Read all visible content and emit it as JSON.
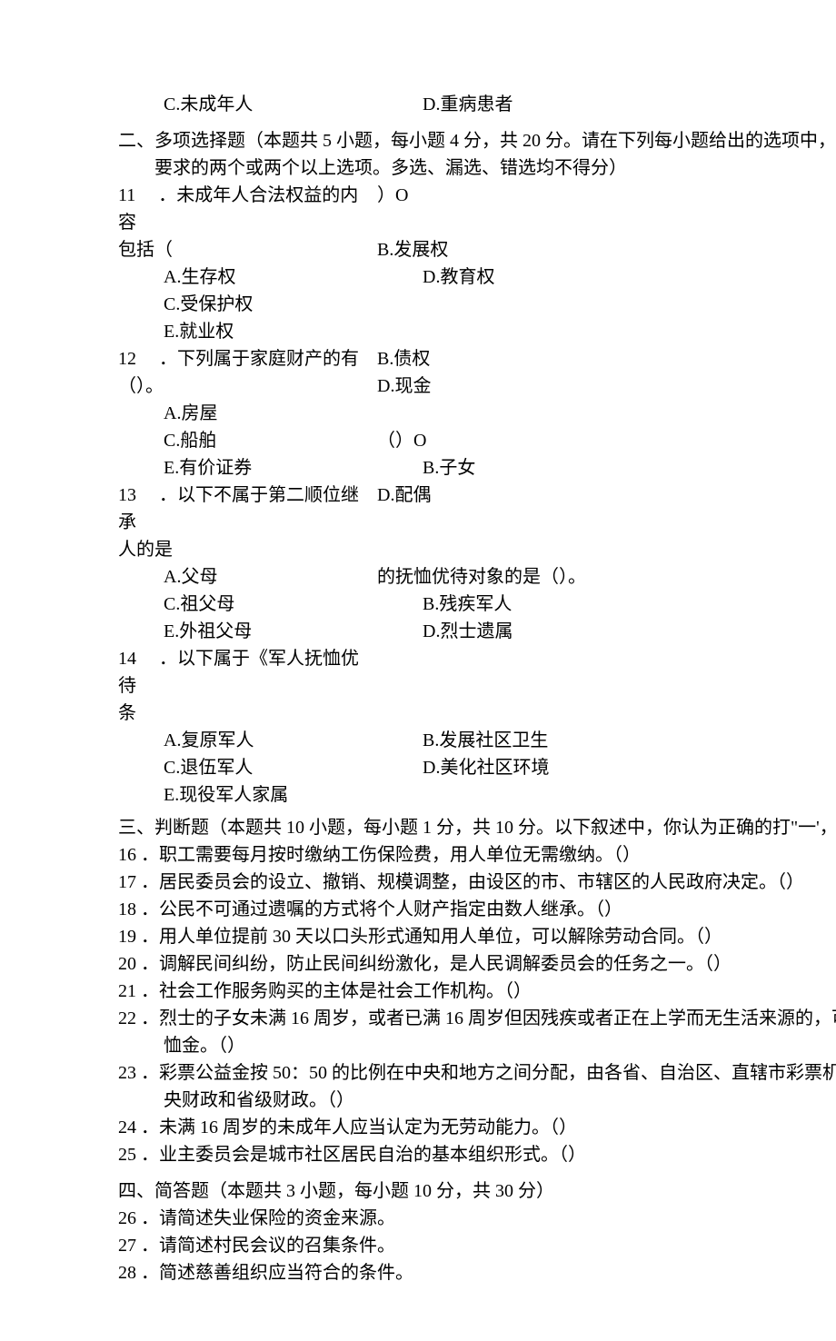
{
  "colors": {
    "background": "#ffffff",
    "text": "#000000"
  },
  "typography": {
    "font_family": "SimSun",
    "base_fontsize_pt": 15,
    "line_height": 1.5
  },
  "q10": {
    "optC": "C.未成年人",
    "optD": "D.重病患者"
  },
  "section2": {
    "head": "二、多项选择题（本题共 5 小题，每小题 4 分，共 20 分。请在下列每小题给出的选项中，选出符合题目要求的两个或两个以上选项。多选、漏选、错选均不得分）"
  },
  "q11": {
    "num": "11",
    "stem": "．未成年人合法权益的内容包括（",
    "tail": "）O",
    "optA": "A.生存权",
    "optB": "B.发展权",
    "optC": "C.受保护权",
    "optD": "D.教育权",
    "optE": "E.就业权"
  },
  "q12": {
    "num": "12",
    "stem": "．下列属于家庭财产的有（）。",
    "optA": "A.房屋",
    "optB": "B.债权",
    "optC": "C.船舶",
    "optD": "D.现金",
    "optE": "E.有价证券"
  },
  "q13": {
    "num": "13",
    "stem": "．以下不属于第二顺位继承人的是",
    "tail": "（）O",
    "optA": "A.父母",
    "optB": "B.子女",
    "optC": "C.祖父母",
    "optD": "D.配偶",
    "optE": "E.外祖父母"
  },
  "q14": {
    "num": "14",
    "stem": "．以下属于《军人抚恤优待条",
    "stem2": "的抚恤优待对象的是（）。",
    "optA": "A.复原军人",
    "optB": "B.残疾军人",
    "optC": "C.退伍军人",
    "optD": "D.烈士遗属",
    "optE": "E.现役军人家属"
  },
  "q15_extra": {
    "optB": "B.发展社区卫生",
    "optD": "D.美化社区环境"
  },
  "section3": {
    "head": "三、判断题（本题共 10 小题，每小题 1 分，共 10 分。以下叙述中，你认为正确的打\"一'，错误的打\"X\"）"
  },
  "q16": {
    "num": "16",
    "text": "．职工需要每月按时缴纳工伤保险费，用人单位无需缴纳。（）"
  },
  "q17": {
    "num": "17",
    "text": "．居民委员会的设立、撤销、规模调整，由设区的市、市辖区的人民政府决定。（）"
  },
  "q18": {
    "num": "18",
    "text": "．公民不可通过遗嘱的方式将个人财产指定由数人继承。（）"
  },
  "q19": {
    "num": "19",
    "text": "．用人单位提前 30 天以口头形式通知用人单位，可以解除劳动合同。（）"
  },
  "q20": {
    "num": "20",
    "text": "．调解民间纠纷，防止民间纠纷激化，是人民调解委员会的任务之一。（）"
  },
  "q21": {
    "num": "21",
    "text": "．社会工作服务购买的主体是社会工作机构。（）"
  },
  "q22": {
    "num": "22",
    "text": "．烈士的子女未满 16 周岁，或者已满 16 周岁但因残疾或者正在上学而无生活来源的，可享受定期抚恤金。（）"
  },
  "q23": {
    "num": "23",
    "text": "．彩票公益金按 50：50 的比例在中央和地方之间分配，由各省、自治区、直辖市彩票机构分别上缴中央财政和省级财政。（）"
  },
  "q24": {
    "num": "24",
    "text": "．未满 16 周岁的未成年人应当认定为无劳动能力。（）"
  },
  "q25": {
    "num": "25",
    "text": "．业主委员会是城市社区居民自治的基本组织形式。（）"
  },
  "section4": {
    "head": "四、简答题（本题共 3 小题，每小题 10 分，共 30 分）"
  },
  "q26": {
    "num": "26",
    "text": "．请简述失业保险的资金来源。"
  },
  "q27": {
    "num": "27",
    "text": "．请简述村民会议的召集条件。"
  },
  "q28": {
    "num": "28",
    "text": "．简述慈善组织应当符合的条件。"
  }
}
